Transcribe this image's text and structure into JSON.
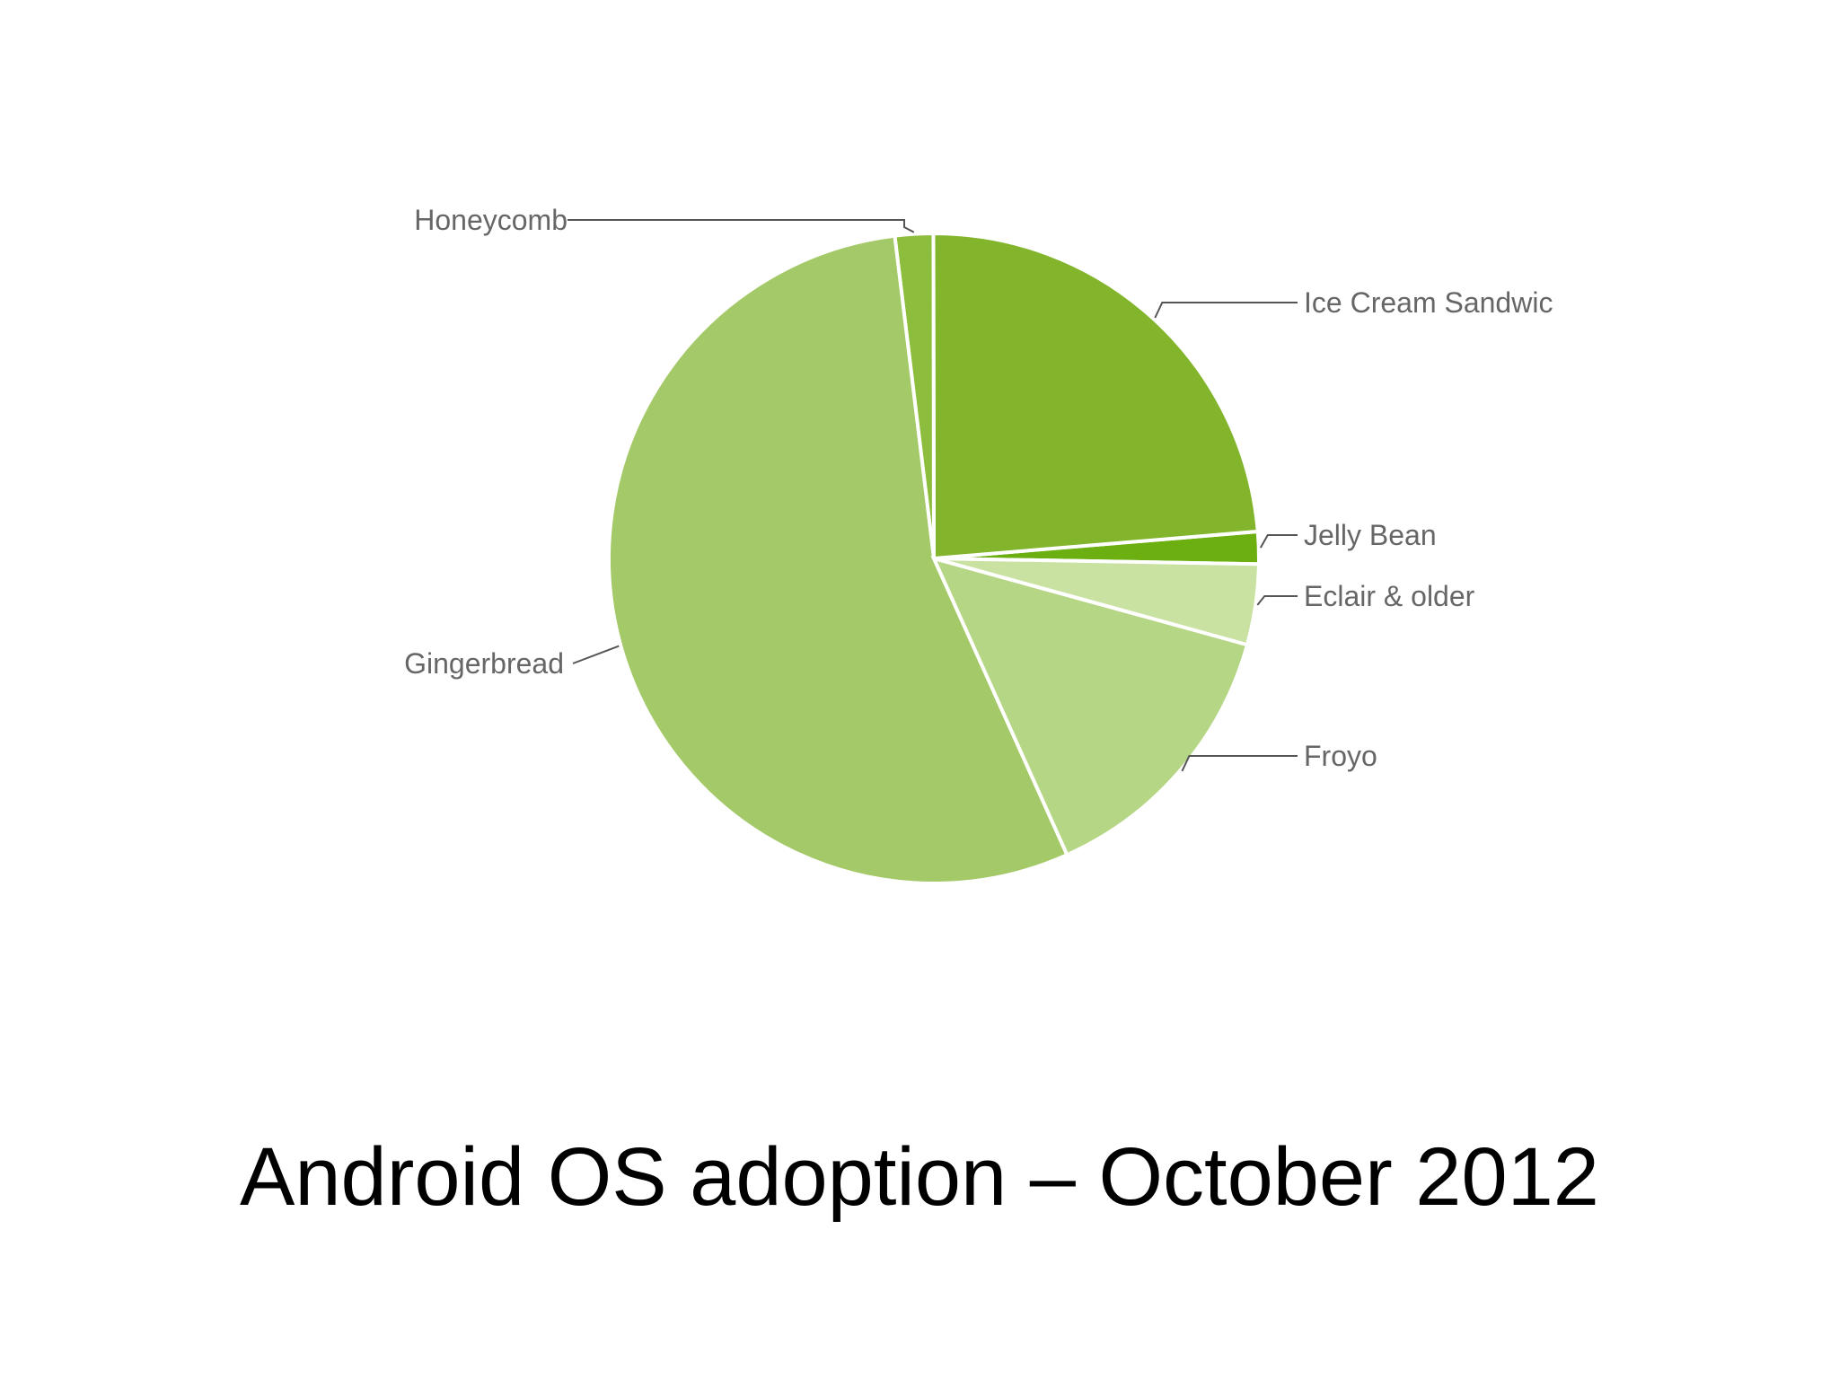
{
  "caption": "Android OS adoption – October 2012",
  "chart_data": {
    "type": "pie",
    "title": "",
    "start_angle_deg": -1,
    "direction": "counterclockwise",
    "slices": [
      {
        "label": "Jelly Bean",
        "value": 1.6,
        "color": "#6caf11"
      },
      {
        "label": "Ice Cream Sandwic",
        "value": 23.7,
        "color": "#82b52b"
      },
      {
        "label": "Honeycomb",
        "value": 1.9,
        "color": "#8dbd3c"
      },
      {
        "label": "Gingerbread",
        "value": 54.8,
        "color": "#a4c968"
      },
      {
        "label": "Froyo",
        "value": 14.0,
        "color": "#b5d685"
      },
      {
        "label": "Eclair & older",
        "value": 4.0,
        "color": "#c9e2a2"
      }
    ]
  }
}
